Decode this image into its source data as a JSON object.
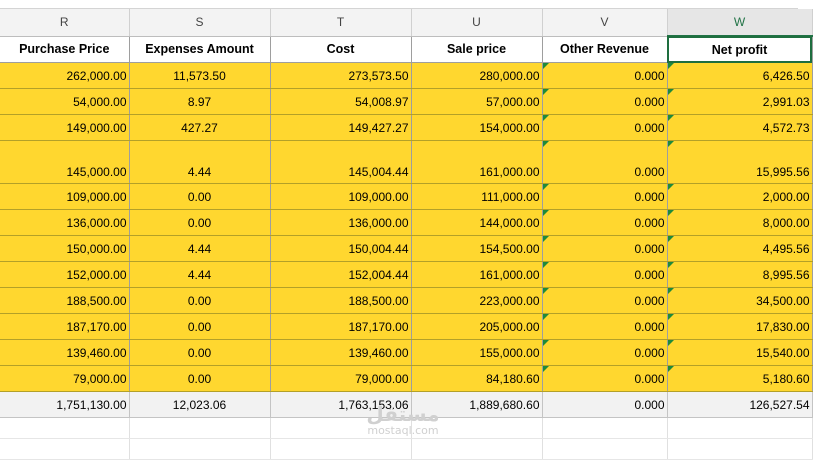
{
  "columns": {
    "letters": [
      "R",
      "S",
      "T",
      "U",
      "V",
      "W"
    ],
    "headers": [
      "Purchase Price",
      "Expenses Amount",
      "Cost",
      "Sale price",
      "Other Revenue",
      "Net profit"
    ]
  },
  "rows": [
    [
      "262,000.00",
      "11,573.50",
      "273,573.50",
      "280,000.00",
      "0.000",
      "6,426.50"
    ],
    [
      "54,000.00",
      "8.97",
      "54,008.97",
      "57,000.00",
      "0.000",
      "2,991.03"
    ],
    [
      "149,000.00",
      "427.27",
      "149,427.27",
      "154,000.00",
      "0.000",
      "4,572.73"
    ],
    [
      "145,000.00",
      "4.44",
      "145,004.44",
      "161,000.00",
      "0.000",
      "15,995.56"
    ],
    [
      "109,000.00",
      "0.00",
      "109,000.00",
      "111,000.00",
      "0.000",
      "2,000.00"
    ],
    [
      "136,000.00",
      "0.00",
      "136,000.00",
      "144,000.00",
      "0.000",
      "8,000.00"
    ],
    [
      "150,000.00",
      "4.44",
      "150,004.44",
      "154,500.00",
      "0.000",
      "4,495.56"
    ],
    [
      "152,000.00",
      "4.44",
      "152,004.44",
      "161,000.00",
      "0.000",
      "8,995.56"
    ],
    [
      "188,500.00",
      "0.00",
      "188,500.00",
      "223,000.00",
      "0.000",
      "34,500.00"
    ],
    [
      "187,170.00",
      "0.00",
      "187,170.00",
      "205,000.00",
      "0.000",
      "17,830.00"
    ],
    [
      "139,460.00",
      "0.00",
      "139,460.00",
      "155,000.00",
      "0.000",
      "15,540.00"
    ],
    [
      "79,000.00",
      "0.00",
      "79,000.00",
      "84,180.60",
      "0.000",
      "5,180.60"
    ]
  ],
  "totals": [
    "1,751,130.00",
    "12,023.06",
    "1,763,153.06",
    "1,889,680.60",
    "0.000",
    "126,527.54"
  ],
  "watermark": {
    "glyph": "مستقل",
    "text": "mostaql.com"
  },
  "colors": {
    "highlight": "#ffd72f",
    "selection": "#217346",
    "error_triangle": "#1f8a3a"
  }
}
